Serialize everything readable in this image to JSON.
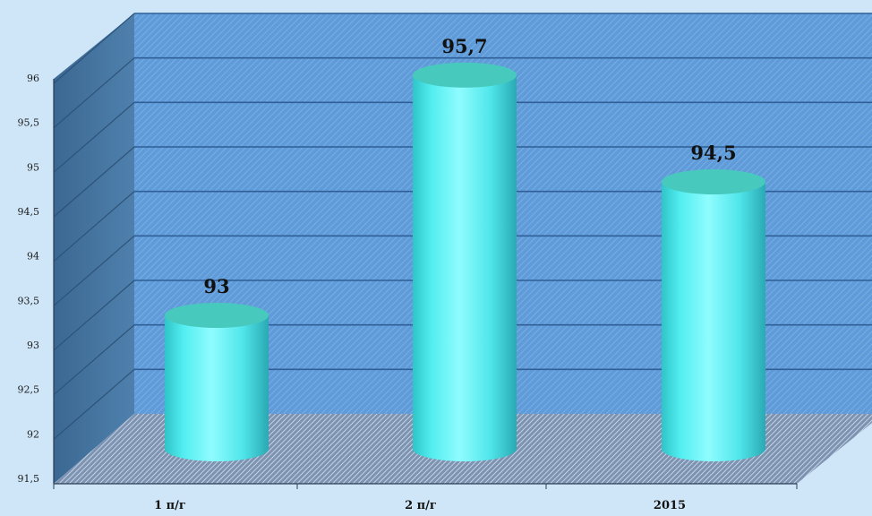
{
  "chart_data": {
    "type": "bar",
    "style": "3d-cylinder",
    "categories": [
      "1 п/г",
      "2 п/г",
      "2015"
    ],
    "values": [
      93,
      95.7,
      94.5
    ],
    "data_labels": [
      "93",
      "95,7",
      "94,5"
    ],
    "y_ticks": [
      "91,5",
      "92",
      "92,5",
      "93",
      "93,5",
      "94",
      "94,5",
      "95",
      "95,5",
      "96"
    ],
    "ylim": [
      91.5,
      96
    ],
    "grid": true,
    "title": "",
    "xlabel": "",
    "ylabel": "",
    "colors": {
      "background": "#cfe6f8",
      "back_wall": "#5e9ad8",
      "side_wall": "#3f6f9c",
      "floor": "#7f97b6",
      "bar": "#4ff0ee",
      "bar_top": "#48c9bd",
      "gridline": "#2f5f96"
    }
  }
}
